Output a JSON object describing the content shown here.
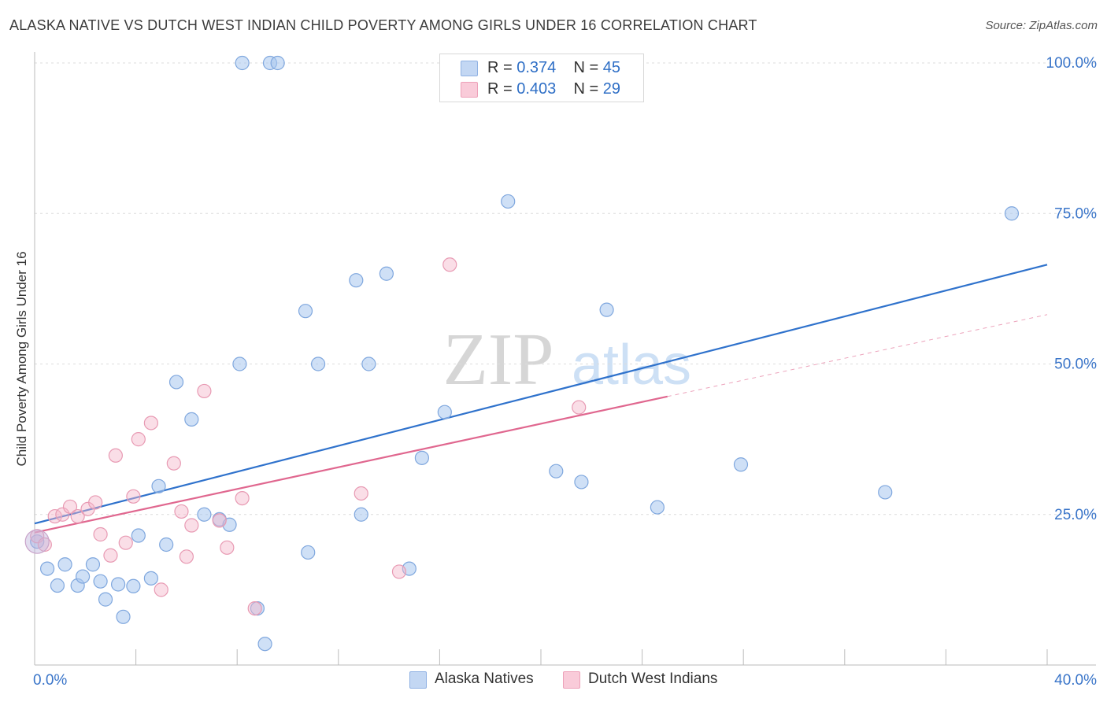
{
  "title": "ALASKA NATIVE VS DUTCH WEST INDIAN CHILD POVERTY AMONG GIRLS UNDER 16 CORRELATION CHART",
  "source": "Source: ZipAtlas.com",
  "watermark": {
    "zip": "ZIP",
    "atlas": "atlas"
  },
  "legend": {
    "rows": [
      {
        "r_label": "R =",
        "r_value": "0.374",
        "n_label": "N =",
        "n_value": "45"
      },
      {
        "r_label": "R =",
        "r_value": "0.403",
        "n_label": "N =",
        "n_value": "29"
      }
    ]
  },
  "chart_data": {
    "type": "scatter",
    "title": "ALASKA NATIVE VS DUTCH WEST INDIAN CHILD POVERTY AMONG GIRLS UNDER 16 CORRELATION CHART",
    "xlabel": "",
    "ylabel": "Child Poverty Among Girls Under 16",
    "xlim": [
      0,
      40
    ],
    "ylim": [
      0,
      105
    ],
    "x_tick_labels": [
      {
        "value": 0,
        "label": "0.0%"
      },
      {
        "value": 40,
        "label": "40.0%"
      }
    ],
    "y_tick_labels": [
      {
        "value": 25,
        "label": "25.0%"
      },
      {
        "value": 50,
        "label": "50.0%"
      },
      {
        "value": 75,
        "label": "75.0%"
      },
      {
        "value": 100,
        "label": "100.0%"
      }
    ],
    "grid": true,
    "legend_position": "top-center",
    "series": [
      {
        "name": "Alaska Natives",
        "color": "#a8c6ee",
        "line_color": "#2f72cc",
        "r": "0.374",
        "n": "45",
        "points": [
          [
            0.1,
            20.5
          ],
          [
            0.5,
            16.0
          ],
          [
            0.9,
            13.2
          ],
          [
            1.2,
            16.7
          ],
          [
            1.7,
            13.2
          ],
          [
            1.9,
            14.7
          ],
          [
            2.3,
            16.7
          ],
          [
            2.6,
            13.9
          ],
          [
            2.8,
            10.9
          ],
          [
            3.3,
            13.4
          ],
          [
            3.5,
            8.0
          ],
          [
            3.9,
            13.1
          ],
          [
            4.1,
            21.5
          ],
          [
            4.6,
            14.4
          ],
          [
            4.9,
            29.7
          ],
          [
            5.2,
            20.0
          ],
          [
            5.6,
            47.0
          ],
          [
            6.2,
            40.8
          ],
          [
            6.7,
            25.0
          ],
          [
            7.3,
            24.2
          ],
          [
            7.7,
            23.3
          ],
          [
            8.1,
            50.0
          ],
          [
            8.2,
            100.0
          ],
          [
            8.8,
            9.4
          ],
          [
            9.1,
            3.5
          ],
          [
            9.3,
            100.0
          ],
          [
            9.6,
            100.0
          ],
          [
            10.7,
            58.8
          ],
          [
            10.8,
            18.7
          ],
          [
            11.2,
            50.0
          ],
          [
            12.7,
            63.9
          ],
          [
            12.9,
            25.0
          ],
          [
            13.2,
            50.0
          ],
          [
            13.9,
            65.0
          ],
          [
            14.8,
            16.0
          ],
          [
            15.3,
            34.4
          ],
          [
            16.2,
            42.0
          ],
          [
            18.7,
            77.0
          ],
          [
            20.6,
            32.2
          ],
          [
            21.6,
            30.4
          ],
          [
            22.6,
            59.0
          ],
          [
            24.6,
            26.2
          ],
          [
            27.9,
            33.3
          ],
          [
            33.6,
            28.7
          ],
          [
            38.6,
            75.0
          ]
        ],
        "trend": {
          "x": [
            0,
            40
          ],
          "y": [
            23.5,
            66.5
          ]
        }
      },
      {
        "name": "Dutch West Indians",
        "color": "#f5b5c9",
        "line_color": "#e0678f",
        "r": "0.403",
        "n": "29",
        "points": [
          [
            0.1,
            21.4
          ],
          [
            0.4,
            20.0
          ],
          [
            0.8,
            24.7
          ],
          [
            1.1,
            25.0
          ],
          [
            1.4,
            26.3
          ],
          [
            1.7,
            24.7
          ],
          [
            2.1,
            25.9
          ],
          [
            2.4,
            27.0
          ],
          [
            2.6,
            21.7
          ],
          [
            3.0,
            18.2
          ],
          [
            3.2,
            34.8
          ],
          [
            3.6,
            20.3
          ],
          [
            3.9,
            28.0
          ],
          [
            4.1,
            37.5
          ],
          [
            4.6,
            40.2
          ],
          [
            5.0,
            12.5
          ],
          [
            5.5,
            33.5
          ],
          [
            5.8,
            25.5
          ],
          [
            6.0,
            18.0
          ],
          [
            6.2,
            23.2
          ],
          [
            6.7,
            45.5
          ],
          [
            7.3,
            24.0
          ],
          [
            7.6,
            19.5
          ],
          [
            8.2,
            27.7
          ],
          [
            8.7,
            9.4
          ],
          [
            12.9,
            28.5
          ],
          [
            14.4,
            15.5
          ],
          [
            16.4,
            66.5
          ],
          [
            21.5,
            42.8
          ]
        ],
        "trend": {
          "x": [
            0,
            25
          ],
          "y": [
            22.0,
            44.6
          ]
        },
        "trend_extension": {
          "x": [
            25,
            40
          ],
          "y": [
            44.6,
            58.2
          ]
        }
      }
    ]
  },
  "bottom_legend": [
    {
      "label": "Alaska Natives",
      "color": "#a8c6ee"
    },
    {
      "label": "Dutch West Indians",
      "color": "#f5b5c9"
    }
  ]
}
